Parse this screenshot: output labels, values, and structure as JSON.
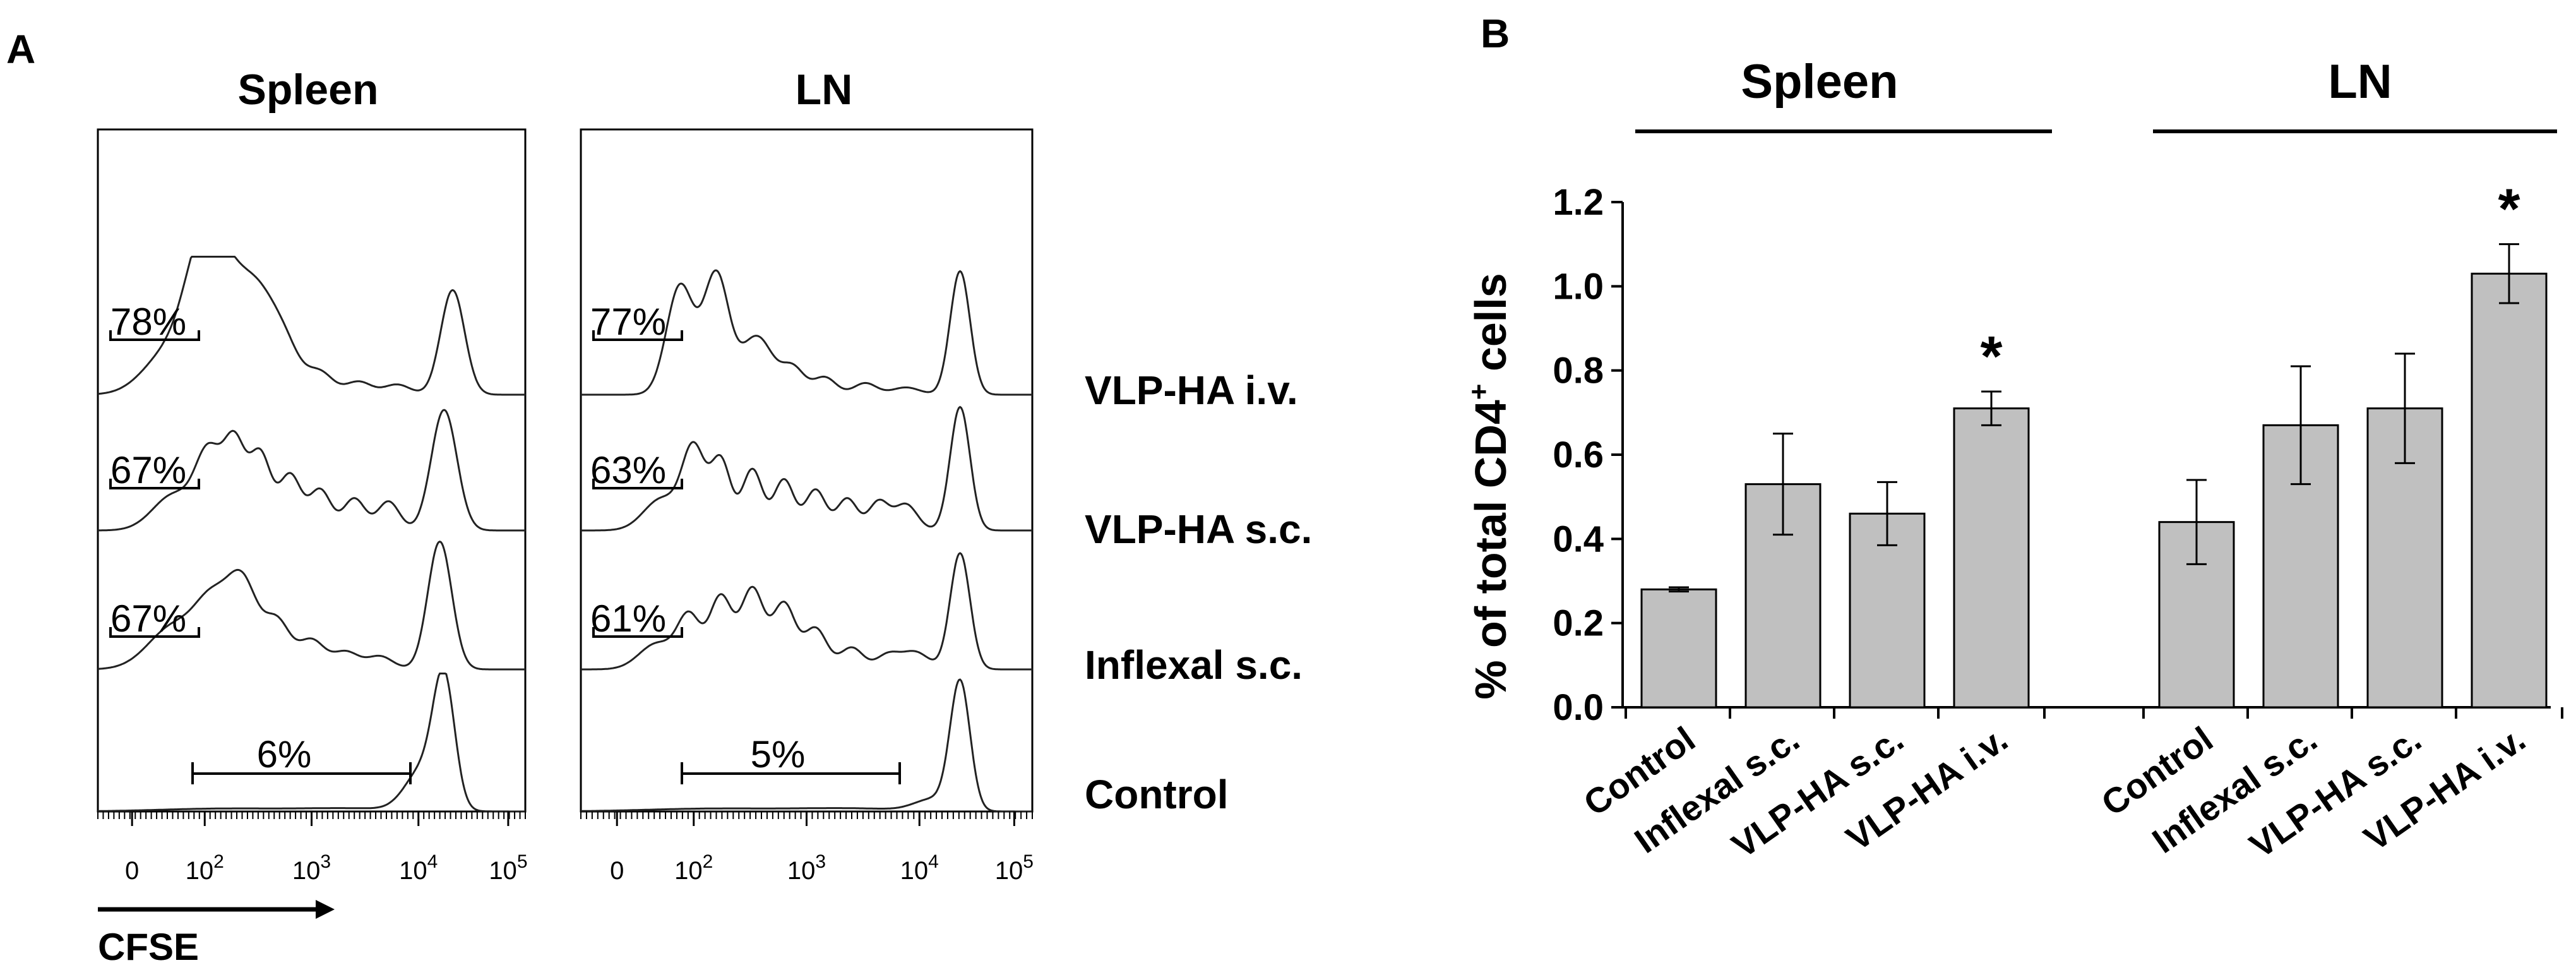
{
  "panel_a": {
    "label": "A",
    "columns": [
      {
        "title": "Spleen",
        "control_gate_pct": "6%",
        "gate_pcts": [
          "78%",
          "67%",
          "67%"
        ]
      },
      {
        "title": "LN",
        "control_gate_pct": "5%",
        "gate_pcts": [
          "77%",
          "63%",
          "61%"
        ]
      }
    ],
    "row_labels": [
      "VLP-HA i.v.",
      "VLP-HA s.c.",
      "Inflexal s.c.",
      "Control"
    ],
    "x_ticks": [
      {
        "base": "0",
        "exp": ""
      },
      {
        "base": "10",
        "exp": "2"
      },
      {
        "base": "10",
        "exp": "3"
      },
      {
        "base": "10",
        "exp": "4"
      },
      {
        "base": "10",
        "exp": "5"
      }
    ],
    "x_label": "CFSE"
  },
  "panel_b": {
    "label": "B"
  },
  "chart_data": [
    {
      "type": "histogram",
      "title": "Spleen",
      "xlabel": "CFSE",
      "x_scale": "log",
      "series": [
        {
          "name": "VLP-HA i.v.",
          "gate_percent": 78
        },
        {
          "name": "VLP-HA s.c.",
          "gate_percent": 67
        },
        {
          "name": "Inflexal s.c.",
          "gate_percent": 67
        },
        {
          "name": "Control",
          "gate_percent": 6
        }
      ]
    },
    {
      "type": "histogram",
      "title": "LN",
      "xlabel": "CFSE",
      "x_scale": "log",
      "series": [
        {
          "name": "VLP-HA i.v.",
          "gate_percent": 77
        },
        {
          "name": "VLP-HA s.c.",
          "gate_percent": 63
        },
        {
          "name": "Inflexal s.c.",
          "gate_percent": 61
        },
        {
          "name": "Control",
          "gate_percent": 5
        }
      ]
    },
    {
      "type": "bar",
      "ylabel_parts": {
        "pre": "% of total CD4",
        "sup": "+",
        "post": " cells"
      },
      "ylim": [
        0,
        1.2
      ],
      "yticks": [
        "0.0",
        "0.2",
        "0.4",
        "0.6",
        "0.8",
        "1.0",
        "1.2"
      ],
      "bar_color": "#c0c0c0",
      "significance_marker": "*",
      "groups": [
        {
          "name": "Spleen",
          "categories": [
            "Control",
            "Inflexal s.c.",
            "VLP-HA s.c.",
            "VLP-HA i.v."
          ],
          "values": [
            0.28,
            0.53,
            0.46,
            0.71
          ],
          "errors": [
            0.005,
            0.12,
            0.075,
            0.04
          ],
          "significant": [
            false,
            false,
            false,
            true
          ]
        },
        {
          "name": "LN",
          "categories": [
            "Control",
            "Inflexal s.c.",
            "VLP-HA s.c.",
            "VLP-HA i.v."
          ],
          "values": [
            0.44,
            0.67,
            0.71,
            1.03
          ],
          "errors": [
            0.1,
            0.14,
            0.13,
            0.07
          ],
          "significant": [
            false,
            false,
            false,
            true
          ]
        }
      ]
    }
  ]
}
